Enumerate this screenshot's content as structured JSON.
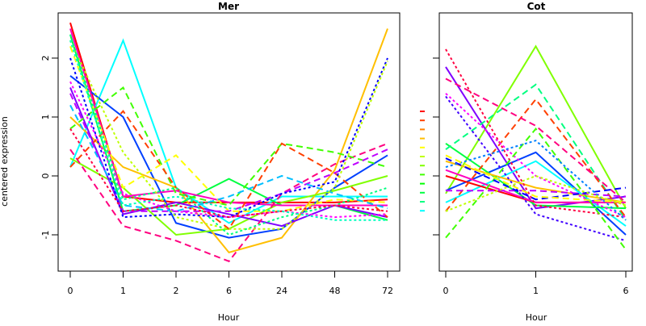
{
  "chart_data": {
    "ylabel": "centered expression",
    "yticks": [
      -1,
      0,
      1,
      2
    ],
    "ylim": [
      -1.6,
      2.75
    ],
    "grid": false,
    "panels": [
      {
        "type": "line",
        "title": "Mer",
        "xlabel": "Hour",
        "categories": [
          "0",
          "1",
          "2",
          "6",
          "24",
          "48",
          "72"
        ],
        "series": [
          {
            "color": "#ff0000",
            "dash": "solid",
            "values": [
              2.6,
              -0.35,
              -0.45,
              -0.45,
              -0.45,
              -0.45,
              -0.4
            ]
          },
          {
            "color": "#00ffff",
            "dash": "solid",
            "values": [
              0.15,
              2.3,
              -0.2,
              -0.8,
              -0.35,
              -0.35,
              -0.35
            ]
          },
          {
            "color": "#0040ff",
            "dash": "solid",
            "values": [
              1.7,
              1.0,
              -0.8,
              -1.05,
              -0.9,
              -0.2,
              0.35
            ]
          },
          {
            "color": "#ffbf00",
            "dash": "solid",
            "values": [
              1.0,
              0.15,
              -0.2,
              -1.3,
              -1.05,
              0.1,
              2.5
            ]
          },
          {
            "color": "#80ff00",
            "dash": "solid",
            "values": [
              0.3,
              -0.2,
              -1.0,
              -0.9,
              -0.45,
              -0.25,
              0.0
            ]
          },
          {
            "color": "#00ff40",
            "dash": "solid",
            "values": [
              2.4,
              -0.6,
              -0.5,
              -0.05,
              -0.5,
              -0.5,
              -0.75
            ]
          },
          {
            "color": "#8000ff",
            "dash": "solid",
            "values": [
              1.5,
              -0.65,
              -0.45,
              -0.65,
              -0.85,
              -0.5,
              -0.7
            ]
          },
          {
            "color": "#ff00bf",
            "dash": "solid",
            "values": [
              2.5,
              -0.35,
              -0.25,
              -0.45,
              -0.5,
              -0.5,
              -0.5
            ]
          },
          {
            "color": "#ff0080",
            "dash": "dashed",
            "values": [
              0.45,
              -0.85,
              -1.1,
              -1.45,
              -0.3,
              0.2,
              0.55
            ]
          },
          {
            "color": "#40ff00",
            "dash": "dashed",
            "values": [
              0.8,
              1.5,
              -0.3,
              -0.5,
              0.55,
              0.4,
              0.15
            ]
          },
          {
            "color": "#ff4000",
            "dash": "dashed",
            "values": [
              0.15,
              1.1,
              -0.2,
              -0.9,
              0.55,
              0.05,
              -0.7
            ]
          },
          {
            "color": "#ffff00",
            "dash": "dashed",
            "values": [
              2.2,
              -0.2,
              0.35,
              -0.6,
              -0.6,
              -0.4,
              -0.45
            ]
          },
          {
            "color": "#bf00ff",
            "dash": "dashed",
            "values": [
              1.4,
              -0.6,
              -0.6,
              -0.6,
              -0.3,
              0.05,
              0.45
            ]
          },
          {
            "color": "#00bfff",
            "dash": "dashed",
            "values": [
              1.2,
              -0.5,
              -0.6,
              -0.35,
              0.0,
              -0.3,
              -0.55
            ]
          },
          {
            "color": "#0000ff",
            "dash": "dotted",
            "values": [
              2.0,
              -0.7,
              -0.65,
              -0.7,
              -0.3,
              -0.1,
              2.0
            ]
          },
          {
            "color": "#bfff00",
            "dash": "dotted",
            "values": [
              2.3,
              0.4,
              -0.7,
              -0.9,
              -0.9,
              -0.2,
              1.95
            ]
          },
          {
            "color": "#00ff80",
            "dash": "dotted",
            "values": [
              2.4,
              -0.4,
              -0.2,
              -1.0,
              -0.7,
              -0.5,
              -0.2
            ]
          },
          {
            "color": "#ff00ff",
            "dash": "dotted",
            "values": [
              1.6,
              -0.3,
              -0.6,
              -0.7,
              -0.6,
              -0.7,
              -0.65
            ]
          },
          {
            "color": "#ff0040",
            "dash": "dotted",
            "values": [
              0.8,
              -0.6,
              -0.5,
              -0.7,
              -0.6,
              -0.5,
              -0.6
            ]
          },
          {
            "color": "#00ffbf",
            "dash": "dotted",
            "values": [
              2.3,
              -0.5,
              -0.35,
              -0.55,
              -0.6,
              -0.75,
              -0.75
            ]
          }
        ]
      },
      {
        "type": "line",
        "title": "Cot",
        "xlabel": "Hour",
        "categories": [
          "0",
          "1",
          "6"
        ],
        "series": [
          {
            "color": "#80ff00",
            "dash": "solid",
            "values": [
              -0.3,
              2.2,
              -0.55
            ]
          },
          {
            "color": "#8000ff",
            "dash": "solid",
            "values": [
              1.85,
              -0.55,
              -0.35
            ]
          },
          {
            "color": "#0040ff",
            "dash": "solid",
            "values": [
              -0.25,
              0.4,
              -1.0
            ]
          },
          {
            "color": "#00ffff",
            "dash": "solid",
            "values": [
              -0.45,
              0.25,
              -0.85
            ]
          },
          {
            "color": "#00ff40",
            "dash": "solid",
            "values": [
              0.55,
              -0.5,
              -0.55
            ]
          },
          {
            "color": "#ffbf00",
            "dash": "solid",
            "values": [
              0.25,
              -0.2,
              -0.45
            ]
          },
          {
            "color": "#ff0000",
            "dash": "solid",
            "values": [
              0.0,
              -0.45,
              -0.45
            ]
          },
          {
            "color": "#ff00bf",
            "dash": "solid",
            "values": [
              0.1,
              -0.45,
              -0.45
            ]
          },
          {
            "color": "#00ff80",
            "dash": "dashed",
            "values": [
              0.45,
              1.55,
              -0.75
            ]
          },
          {
            "color": "#ff4000",
            "dash": "dashed",
            "values": [
              -0.6,
              1.3,
              -0.7
            ]
          },
          {
            "color": "#ff0080",
            "dash": "dashed",
            "values": [
              1.65,
              0.85,
              -0.45
            ]
          },
          {
            "color": "#ff0040",
            "dash": "dotted",
            "values": [
              2.15,
              -0.5,
              -0.7
            ]
          },
          {
            "color": "#4000ff",
            "dash": "dotted",
            "values": [
              1.35,
              -0.65,
              -1.1
            ]
          },
          {
            "color": "#ff00ff",
            "dash": "dotted",
            "values": [
              1.4,
              0.0,
              -0.7
            ]
          },
          {
            "color": "#40ff00",
            "dash": "dashed",
            "values": [
              -1.05,
              0.8,
              -1.25
            ]
          },
          {
            "color": "#bf00ff",
            "dash": "dashed",
            "values": [
              -0.25,
              -0.25,
              -0.35
            ]
          },
          {
            "color": "#0000ff",
            "dash": "dashed",
            "values": [
              0.3,
              -0.4,
              -0.2
            ]
          },
          {
            "color": "#0080ff",
            "dash": "dotted",
            "values": [
              0.15,
              0.6,
              -0.75
            ]
          },
          {
            "color": "#ffff00",
            "dash": "dashed",
            "values": [
              0.35,
              -0.35,
              -0.45
            ]
          },
          {
            "color": "#bfff00",
            "dash": "dotted",
            "values": [
              -0.6,
              0.0,
              -0.5
            ]
          }
        ]
      }
    ],
    "legend_swatches": [
      "#ff0000",
      "#ff4000",
      "#ff8000",
      "#ffbf00",
      "#ffff00",
      "#bfff00",
      "#80ff00",
      "#40ff00",
      "#00ff00",
      "#00ff40",
      "#00ff80",
      "#00ffff"
    ]
  }
}
